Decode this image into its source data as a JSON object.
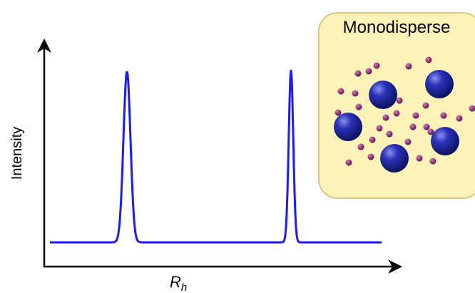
{
  "y_axis_label": "Intensity",
  "x_axis_label": {
    "main": "R",
    "subscript": "h"
  },
  "inset": {
    "title": "Monodisperse"
  }
}
